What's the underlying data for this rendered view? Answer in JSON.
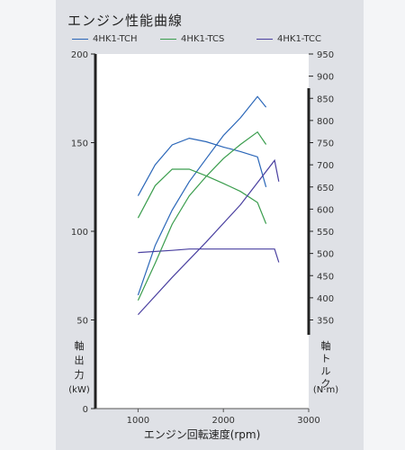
{
  "title": "エンジン性能曲線",
  "chart_data": {
    "type": "line",
    "xlabel": "エンジン回転速度(rpm)",
    "xlim": [
      500,
      3000
    ],
    "xticks": [
      1000,
      2000,
      3000
    ],
    "y_left": {
      "label_chars": [
        "軸",
        "出",
        "力"
      ],
      "unit": "(kW)",
      "ylim": [
        0,
        200
      ],
      "ticks": [
        0,
        50,
        100,
        150,
        200
      ]
    },
    "y_right": {
      "label_chars": [
        "軸",
        "ト",
        "ル",
        "ク"
      ],
      "unit": "(N·m)",
      "ylim": [
        150,
        950
      ],
      "ticks": [
        350,
        400,
        450,
        500,
        550,
        600,
        650,
        700,
        750,
        800,
        850,
        900,
        950
      ]
    },
    "grid": false,
    "legend_position": "top",
    "series": [
      {
        "name": "4HK1-TCH",
        "color": "#2a66b8",
        "power": {
          "x": [
            1000,
            1200,
            1400,
            1600,
            1800,
            2000,
            2200,
            2400,
            2500
          ],
          "y": [
            64,
            92,
            112,
            128,
            141,
            154,
            164,
            176,
            170
          ]
        },
        "torque": {
          "x": [
            1000,
            1200,
            1400,
            1600,
            1800,
            2000,
            2200,
            2400,
            2500
          ],
          "y": [
            630,
            700,
            745,
            760,
            752,
            740,
            730,
            718,
            650
          ]
        }
      },
      {
        "name": "4HK1-TCS",
        "color": "#3a9d4d",
        "power": {
          "x": [
            1000,
            1200,
            1400,
            1600,
            1800,
            2000,
            2200,
            2400,
            2500
          ],
          "y": [
            61,
            82,
            104,
            120,
            131,
            141,
            149,
            156,
            149
          ]
        },
        "torque": {
          "x": [
            1000,
            1200,
            1400,
            1600,
            1800,
            2000,
            2200,
            2400,
            2500
          ],
          "y": [
            580,
            653,
            690,
            690,
            675,
            658,
            640,
            615,
            567
          ]
        }
      },
      {
        "name": "4HK1-TCC",
        "color": "#4a40a0",
        "power": {
          "x": [
            1000,
            1400,
            1800,
            2200,
            2600,
            2650
          ],
          "y": [
            53,
            74,
            94,
            115,
            140,
            128
          ]
        },
        "torque": {
          "x": [
            1000,
            1400,
            1600,
            2000,
            2600,
            2650
          ],
          "y": [
            502,
            507,
            510,
            510,
            510,
            480
          ]
        }
      }
    ]
  }
}
